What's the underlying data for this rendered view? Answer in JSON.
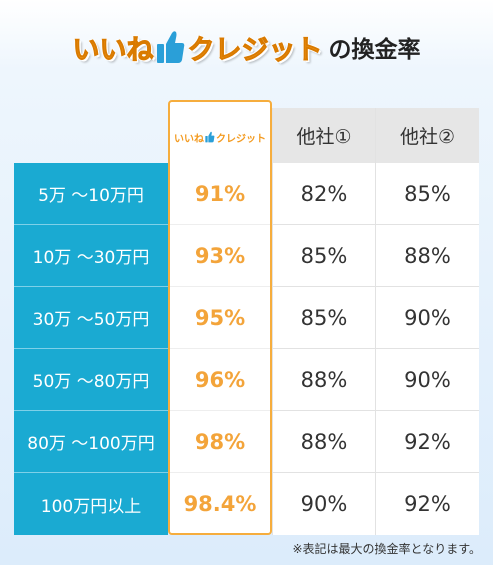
{
  "title": {
    "brand_part1": "いいね",
    "brand_part2": "クレジット",
    "suffix": "の換金率"
  },
  "table": {
    "featured_header_part1": "いいね",
    "featured_header_part2": "クレジット",
    "other_headers": [
      "他社①",
      "他社②"
    ],
    "rows": [
      {
        "label": "5万 〜10万円",
        "featured": "91%",
        "other1": "82%",
        "other2": "85%"
      },
      {
        "label": "10万 〜30万円",
        "featured": "93%",
        "other1": "85%",
        "other2": "88%"
      },
      {
        "label": "30万 〜50万円",
        "featured": "95%",
        "other1": "85%",
        "other2": "90%"
      },
      {
        "label": "50万 〜80万円",
        "featured": "96%",
        "other1": "88%",
        "other2": "90%"
      },
      {
        "label": "80万 〜100万円",
        "featured": "98%",
        "other1": "88%",
        "other2": "92%"
      },
      {
        "label": "100万円以上",
        "featured": "98.4%",
        "other1": "90%",
        "other2": "92%"
      }
    ]
  },
  "note": "※表記は最大の換金率となります。",
  "colors": {
    "brand_orange": "#f39a1f",
    "row_label_blue": "#1aaad2",
    "featured_border": "#f6ad3d",
    "header_gray": "#e6e6e6",
    "thumb_blue": "#2a9fd8"
  },
  "icons": [
    "thumbs-up-icon"
  ]
}
